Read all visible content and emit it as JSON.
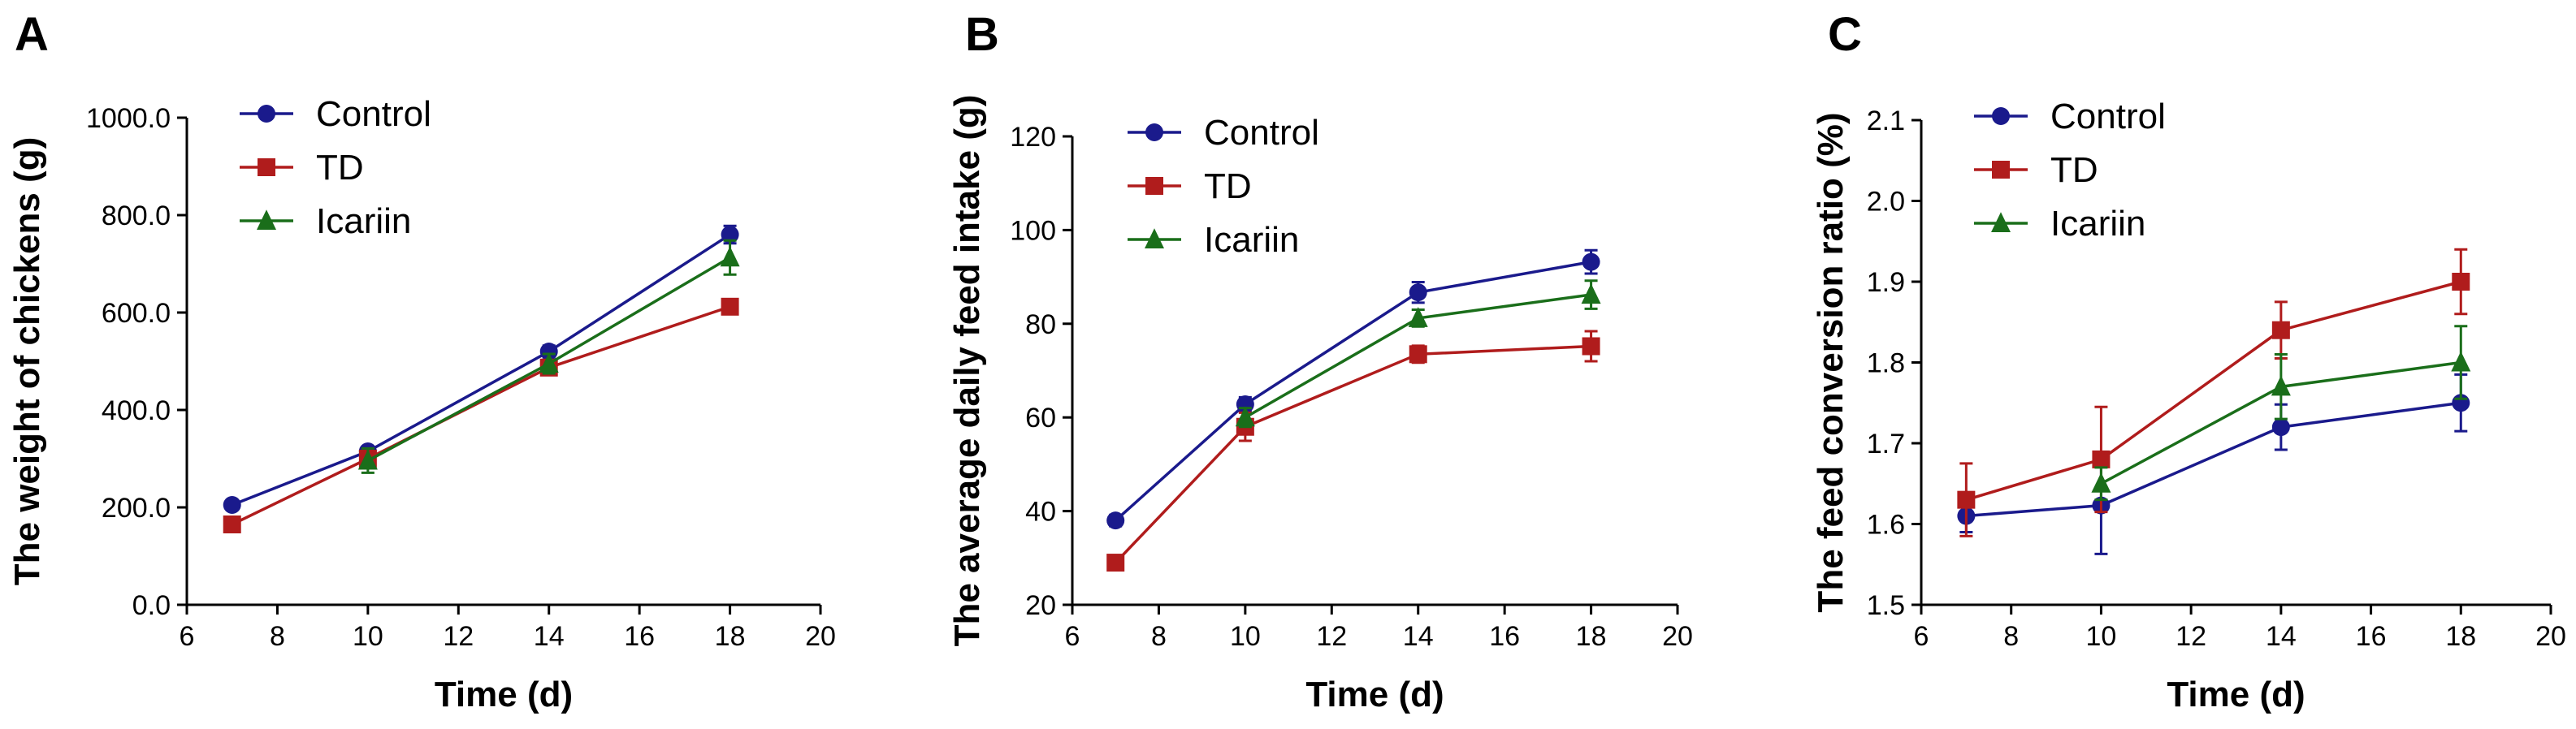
{
  "figure": {
    "description_panels": [
      "A",
      "B",
      "C"
    ]
  },
  "colors": {
    "Control": "#1a1a8c",
    "TD": "#b01c1c",
    "Icariin": "#1a6e1a"
  },
  "chart_data": [
    {
      "type": "line",
      "panel_label": "A",
      "title": "",
      "xlabel": "Time (d)",
      "ylabel": "The weight of chickens (g)",
      "xlim": [
        6,
        20
      ],
      "ylim": [
        0,
        1000
      ],
      "x_ticks": [
        6,
        8,
        10,
        12,
        14,
        16,
        18,
        20
      ],
      "y_ticks": [
        0,
        200,
        400,
        600,
        800,
        1000
      ],
      "y_tick_labels": [
        "0.0",
        "200.0",
        "400.0",
        "600.0",
        "800.0",
        "1000.0"
      ],
      "legend": [
        "Control",
        "TD",
        "Icariin"
      ],
      "legend_position": "top-left",
      "series": [
        {
          "name": "Control",
          "marker": "circle",
          "x": [
            7,
            10,
            14,
            18
          ],
          "values": [
            205,
            315,
            520,
            760
          ],
          "errors": [
            5,
            10,
            12,
            18
          ]
        },
        {
          "name": "TD",
          "marker": "square",
          "x": [
            7,
            10,
            14,
            18
          ],
          "values": [
            165,
            300,
            487,
            612
          ],
          "errors": [
            4,
            8,
            15,
            8
          ]
        },
        {
          "name": "Icariin",
          "marker": "triangle",
          "x": [
            10,
            14,
            18
          ],
          "values": [
            296,
            495,
            713
          ],
          "errors": [
            25,
            20,
            35
          ]
        }
      ]
    },
    {
      "type": "line",
      "panel_label": "B",
      "title": "",
      "xlabel": "Time (d)",
      "ylabel": "The average daily feed intake (g)",
      "xlim": [
        6,
        20
      ],
      "ylim": [
        20,
        120
      ],
      "x_ticks": [
        6,
        8,
        10,
        12,
        14,
        16,
        18,
        20
      ],
      "y_ticks": [
        20,
        40,
        60,
        80,
        100,
        120
      ],
      "y_tick_labels": [
        "20",
        "40",
        "60",
        "80",
        "100",
        "120"
      ],
      "legend": [
        "Control",
        "TD",
        "Icariin"
      ],
      "legend_position": "top-left",
      "series": [
        {
          "name": "Control",
          "marker": "circle",
          "x": [
            7,
            10,
            14,
            18
          ],
          "values": [
            38,
            62.8,
            86.7,
            93.2
          ],
          "errors": [
            1.2,
            1.5,
            2.2,
            2.5
          ]
        },
        {
          "name": "TD",
          "marker": "square",
          "x": [
            7,
            10,
            14,
            18
          ],
          "values": [
            29,
            58,
            73.5,
            75.2
          ],
          "errors": [
            1.5,
            3.0,
            1.8,
            3.2
          ]
        },
        {
          "name": "Icariin",
          "marker": "triangle",
          "x": [
            10,
            14,
            18
          ],
          "values": [
            60,
            81.2,
            86.2
          ],
          "errors": [
            2.0,
            1.8,
            3.0
          ]
        }
      ]
    },
    {
      "type": "line",
      "panel_label": "C",
      "title": "",
      "xlabel": "Time (d)",
      "ylabel": "The feed conversion ratio (%)",
      "xlim": [
        6,
        20
      ],
      "ylim": [
        1.5,
        2.1
      ],
      "x_ticks": [
        6,
        8,
        10,
        12,
        14,
        16,
        18,
        20
      ],
      "y_ticks": [
        1.5,
        1.6,
        1.7,
        1.8,
        1.9,
        2.0,
        2.1
      ],
      "y_tick_labels": [
        "1.5",
        "1.6",
        "1.7",
        "1.8",
        "1.9",
        "2.0",
        "2.1"
      ],
      "legend": [
        "Control",
        "TD",
        "Icariin"
      ],
      "legend_position": "top-left",
      "series": [
        {
          "name": "Control",
          "marker": "circle",
          "x": [
            7,
            10,
            14,
            18
          ],
          "values": [
            1.61,
            1.623,
            1.72,
            1.75
          ],
          "errors": [
            0.02,
            0.06,
            0.028,
            0.035
          ]
        },
        {
          "name": "TD",
          "marker": "square",
          "x": [
            7,
            10,
            14,
            18
          ],
          "values": [
            1.63,
            1.68,
            1.84,
            1.9
          ],
          "errors": [
            0.045,
            0.065,
            0.035,
            0.04
          ]
        },
        {
          "name": "Icariin",
          "marker": "triangle",
          "x": [
            10,
            14,
            18
          ],
          "values": [
            1.65,
            1.77,
            1.8
          ],
          "errors": [
            0.02,
            0.04,
            0.045
          ]
        }
      ]
    }
  ]
}
